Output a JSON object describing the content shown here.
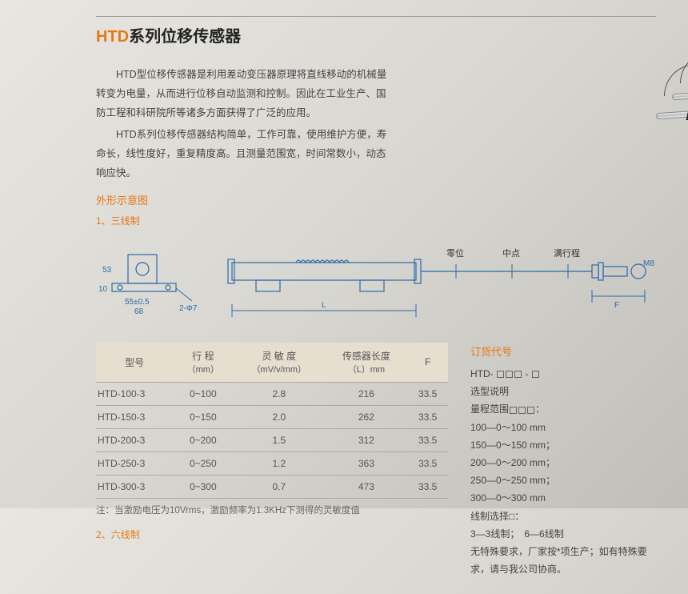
{
  "title": {
    "prefix": "HTD",
    "rest": "系列位移传感器"
  },
  "description": {
    "p1": "HTD型位移传感器是利用差动变压器原理将直线移动的机械量转变为电量，从而进行位移自动监测和控制。因此在工业生产、国防工程和科研院所等诸多方面获得了广泛的应用。",
    "p2": "HTD系列位移传感器结构简单，工作可靠，使用维护方便，寿命长，线性度好，重复精度高。且测量范围宽，时间常数小，动态响应快。"
  },
  "outline": {
    "section_label": "外形示意图",
    "sub1": "1、三线制",
    "sub2": "2、六线制"
  },
  "diagram": {
    "dims": {
      "h53": "53",
      "h10": "10",
      "w55": "55±0.5",
      "w68": "68",
      "hole": "2-Φ7",
      "L": "L",
      "F": "F",
      "thread": "M8"
    },
    "labels": {
      "zero": "零位",
      "mid": "中点",
      "full": "满行程"
    }
  },
  "table": {
    "headers": {
      "model": "型号",
      "range": "行 程",
      "range_unit": "（mm）",
      "sens": "灵 敏 度",
      "sens_unit": "（mV/v/mm）",
      "len": "传感器长度",
      "len_unit": "（L）mm",
      "F": "F"
    },
    "rows": [
      {
        "model": "HTD-100-3",
        "range": "0~100",
        "sens": "2.8",
        "len": "216",
        "F": "33.5"
      },
      {
        "model": "HTD-150-3",
        "range": "0~150",
        "sens": "2.0",
        "len": "262",
        "F": "33.5"
      },
      {
        "model": "HTD-200-3",
        "range": "0~200",
        "sens": "1.5",
        "len": "312",
        "F": "33.5"
      },
      {
        "model": "HTD-250-3",
        "range": "0~250",
        "sens": "1.2",
        "len": "363",
        "F": "33.5"
      },
      {
        "model": "HTD-300-3",
        "range": "0~300",
        "sens": "0.7",
        "len": "473",
        "F": "33.5"
      }
    ],
    "note": "注：当激励电压为10Vrms，激励频率为1.3KHz下测得的灵敏度值"
  },
  "order": {
    "title": "订货代号",
    "code_prefix": "HTD- ",
    "desc_label": "选型说明",
    "range_label": "量程范围",
    "ranges": [
      "100—0～100 mm",
      "150—0～150 mm；",
      "200—0～200 mm；",
      "250—0～250 mm；",
      "300—0～300 mm"
    ],
    "wire_label": "线制选择□：",
    "wire_opts": "3—3线制；　6—6线制",
    "tail": "无特殊要求，厂家按*项生产；如有特殊要求，请与我公司协商。"
  },
  "colors": {
    "accent": "#e67817",
    "diagram": "#2a6aa8",
    "thead_bg": "#e6dfcf"
  }
}
